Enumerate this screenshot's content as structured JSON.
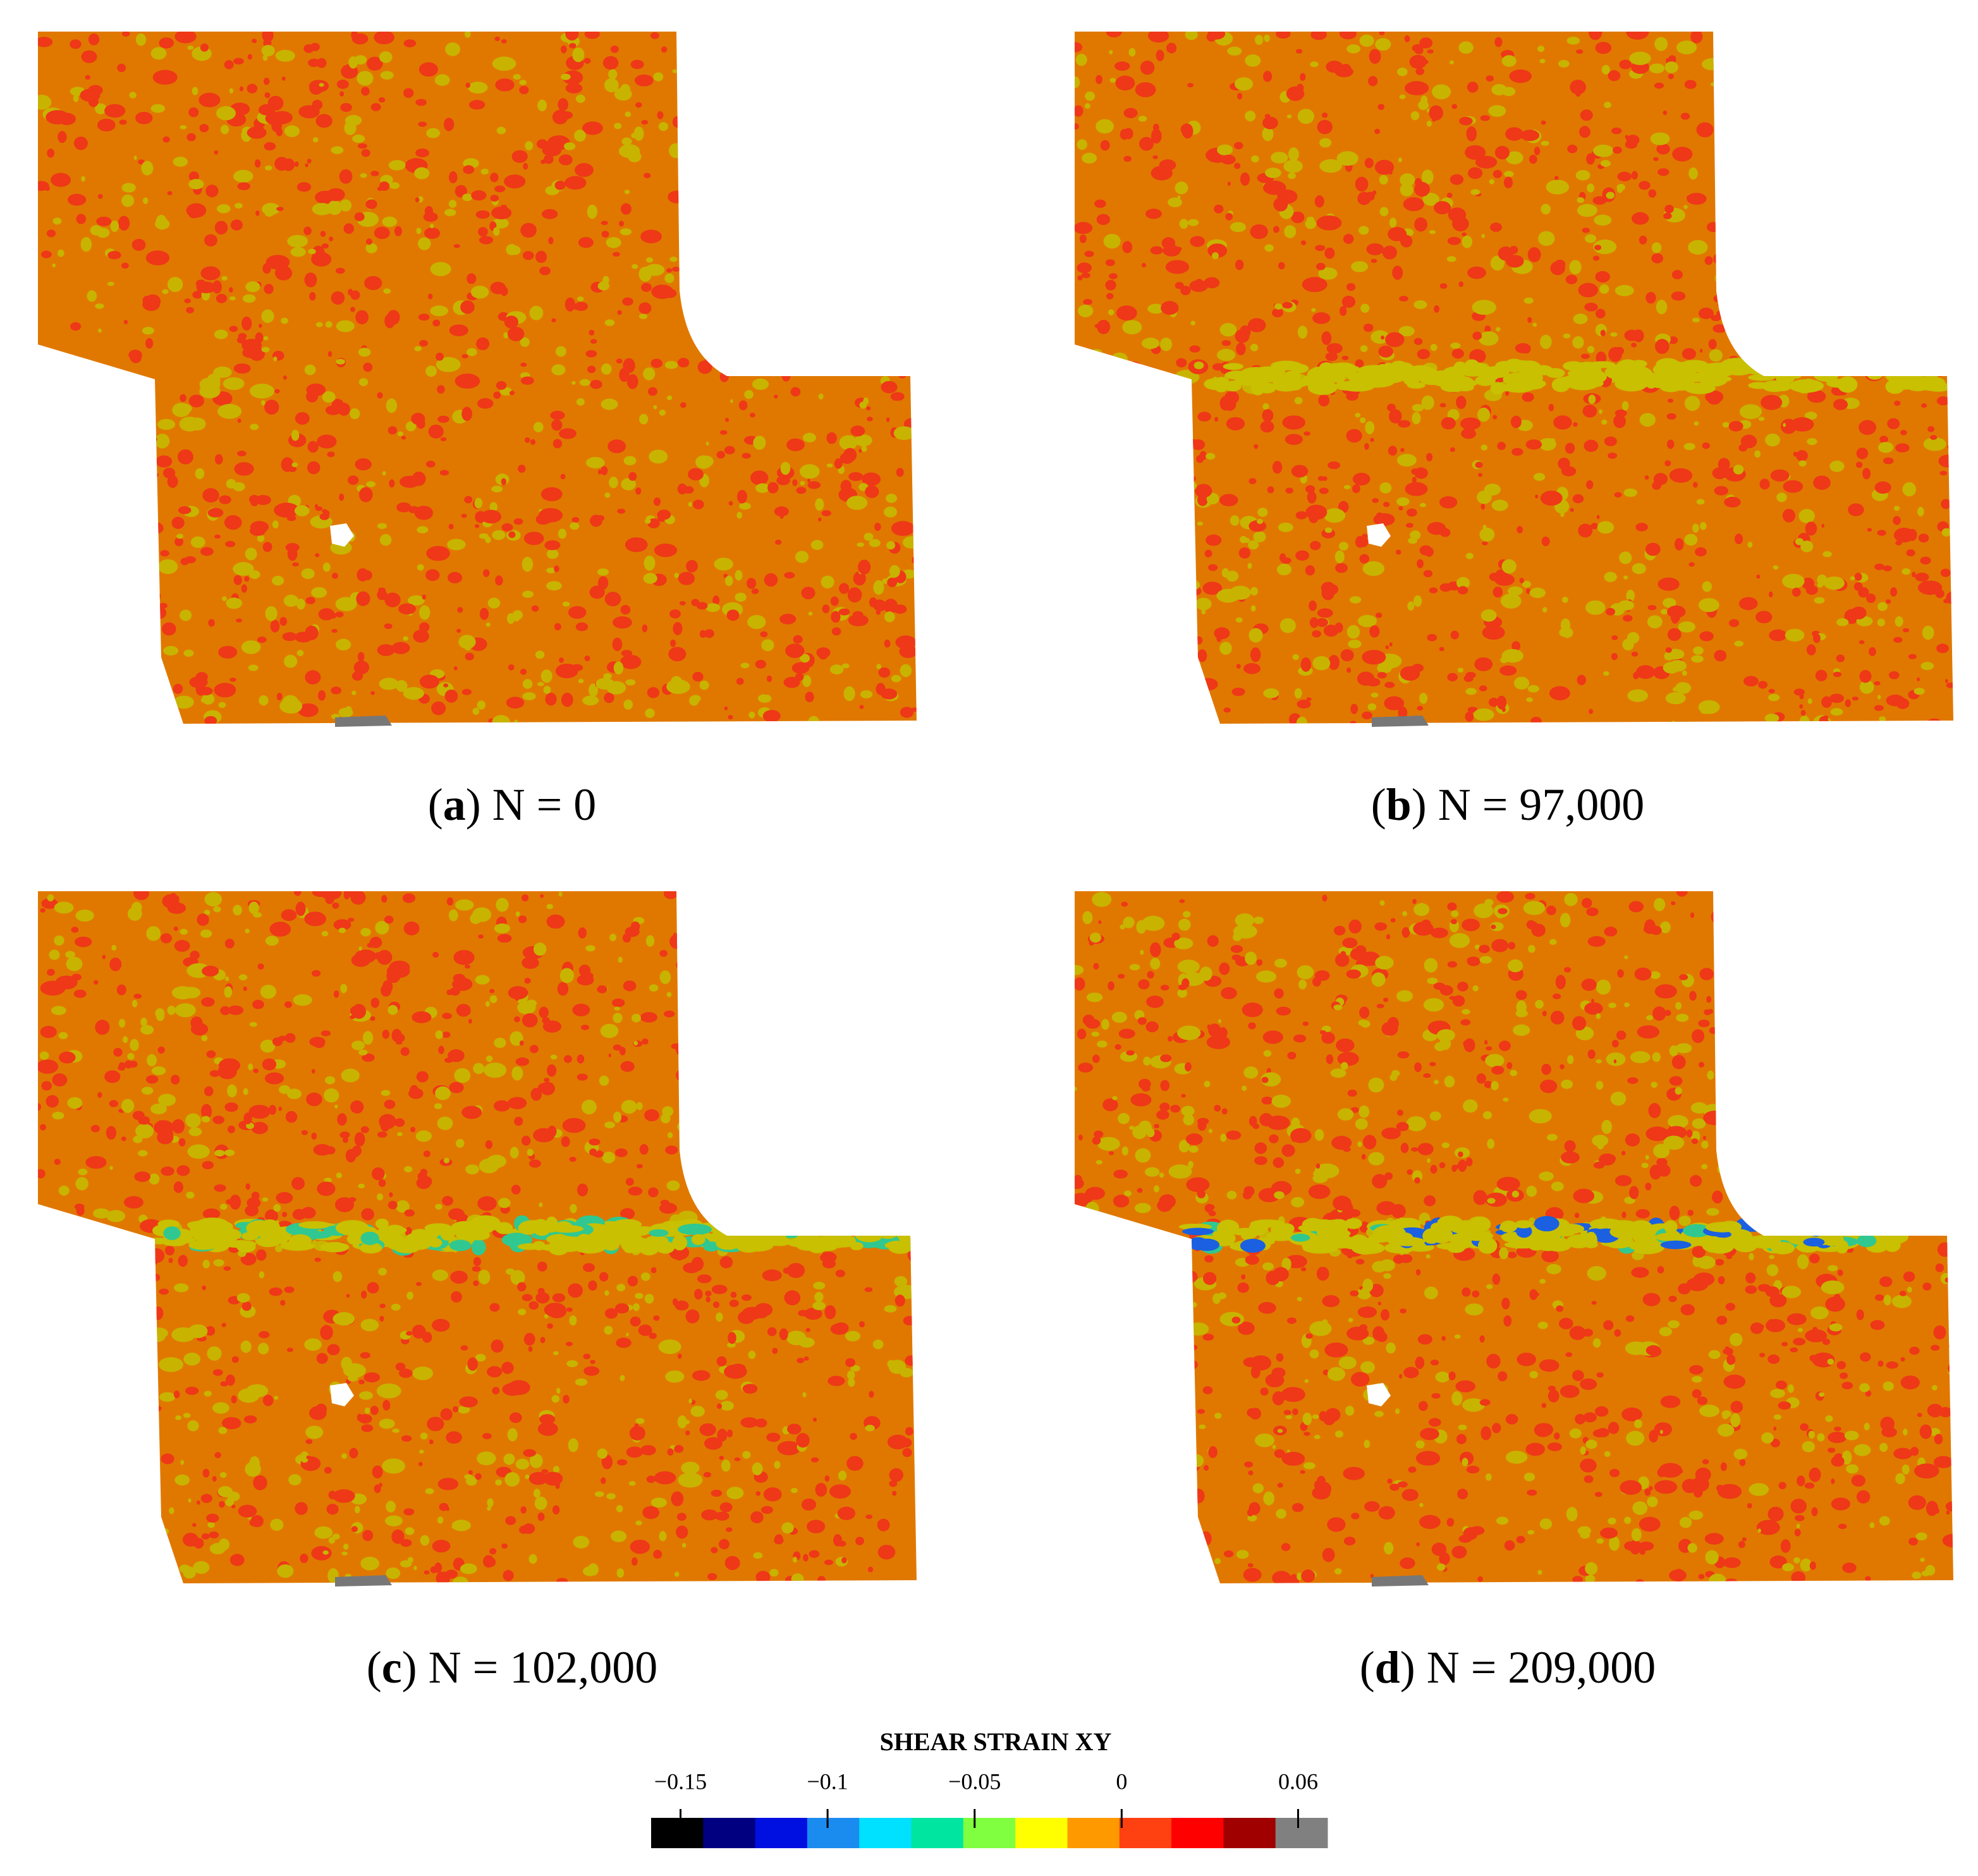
{
  "brackets": [
    "(",
    ")"
  ],
  "panels": [
    {
      "label": "a",
      "caption": "N = 0"
    },
    {
      "label": "b",
      "caption": "N = 97,000"
    },
    {
      "label": "c",
      "caption": "N = 102,000"
    },
    {
      "label": "d",
      "caption": "N = 209,000"
    }
  ],
  "colorbar": {
    "title": "SHEAR STRAIN XY",
    "lim": [
      -0.16,
      0.07
    ],
    "ticks": [
      {
        "value": -0.15,
        "label": "−0.15"
      },
      {
        "value": -0.1,
        "label": "−0.1"
      },
      {
        "value": -0.05,
        "label": "−0.05"
      },
      0,
      0.06
    ],
    "colors": [
      "#000000",
      "#000080",
      "#0010e0",
      "#1a8cf0",
      "#00e0ff",
      "#00e6a0",
      "#80ff40",
      "#ffff00",
      "#ff9900",
      "#ff4010",
      "#ff0000",
      "#a00000",
      "#808080"
    ]
  }
}
